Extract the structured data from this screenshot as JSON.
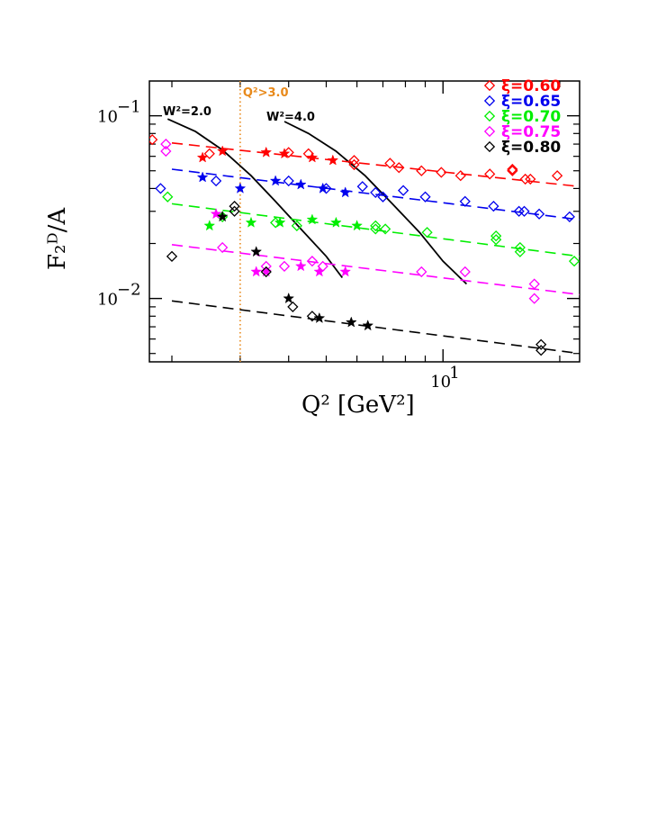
{
  "chart_data": {
    "type": "scatter",
    "title": "",
    "xlabel": "Q² [GeV²]",
    "ylabel": "F₂ᴰ/A",
    "xscale": "log",
    "yscale": "log",
    "xlim": [
      1.75,
      22.5
    ],
    "ylim": [
      0.0045,
      0.155
    ],
    "x_ticks": [
      {
        "value": 10,
        "label": "10",
        "exp": "1"
      }
    ],
    "y_ticks": [
      {
        "value": 0.1,
        "label": "10",
        "exp": "−1"
      },
      {
        "value": 0.01,
        "label": "10",
        "exp": "−2"
      }
    ],
    "legend_position": "top-right",
    "cut_line": {
      "x": 3.0,
      "label": "Q²>3.0",
      "color": "#e8891a"
    },
    "w2_curves": [
      {
        "label": "W²=2.0",
        "points": [
          [
            1.95,
            0.096
          ],
          [
            2.3,
            0.082
          ],
          [
            2.7,
            0.065
          ],
          [
            3.2,
            0.047
          ],
          [
            3.7,
            0.034
          ],
          [
            4.3,
            0.024
          ],
          [
            5.0,
            0.017
          ],
          [
            5.5,
            0.013
          ]
        ]
      },
      {
        "label": "W²=4.0",
        "points": [
          [
            3.9,
            0.093
          ],
          [
            4.5,
            0.08
          ],
          [
            5.3,
            0.064
          ],
          [
            6.3,
            0.047
          ],
          [
            7.4,
            0.033
          ],
          [
            8.7,
            0.023
          ],
          [
            10.0,
            0.016
          ],
          [
            11.5,
            0.012
          ]
        ]
      }
    ],
    "series": [
      {
        "name": "ξ=0.60",
        "color": "#ff0000",
        "fit": [
          [
            2.0,
            0.071
          ],
          [
            22.5,
            0.041
          ]
        ],
        "diamonds": [
          [
            1.78,
            0.074
          ],
          [
            2.5,
            0.062
          ],
          [
            4.0,
            0.063
          ],
          [
            4.5,
            0.062
          ],
          [
            5.9,
            0.057
          ],
          [
            5.9,
            0.054
          ],
          [
            7.3,
            0.055
          ],
          [
            7.7,
            0.052
          ],
          [
            8.8,
            0.05
          ],
          [
            9.9,
            0.049
          ],
          [
            11.1,
            0.047
          ],
          [
            13.2,
            0.048
          ],
          [
            15.1,
            0.051
          ],
          [
            15.1,
            0.05
          ],
          [
            16.3,
            0.045
          ],
          [
            16.8,
            0.045
          ],
          [
            19.7,
            0.047
          ]
        ],
        "stars": [
          [
            2.4,
            0.059
          ],
          [
            2.7,
            0.064
          ],
          [
            3.5,
            0.063
          ],
          [
            3.9,
            0.062
          ],
          [
            4.6,
            0.059
          ],
          [
            5.2,
            0.057
          ]
        ]
      },
      {
        "name": "ξ=0.65",
        "color": "#0000ee",
        "fit": [
          [
            2.0,
            0.051
          ],
          [
            22.5,
            0.027
          ]
        ],
        "diamonds": [
          [
            1.87,
            0.04
          ],
          [
            2.6,
            0.044
          ],
          [
            4.0,
            0.044
          ],
          [
            5.0,
            0.04
          ],
          [
            6.2,
            0.041
          ],
          [
            6.7,
            0.038
          ],
          [
            7.0,
            0.036
          ],
          [
            7.9,
            0.039
          ],
          [
            9.0,
            0.036
          ],
          [
            11.4,
            0.034
          ],
          [
            13.5,
            0.032
          ],
          [
            15.7,
            0.03
          ],
          [
            16.2,
            0.03
          ],
          [
            17.7,
            0.029
          ],
          [
            21.2,
            0.028
          ]
        ],
        "stars": [
          [
            2.4,
            0.046
          ],
          [
            3.0,
            0.04
          ],
          [
            3.7,
            0.044
          ],
          [
            4.3,
            0.042
          ],
          [
            4.9,
            0.04
          ],
          [
            5.6,
            0.038
          ]
        ]
      },
      {
        "name": "ξ=0.70",
        "color": "#00ee00",
        "fit": [
          [
            2.0,
            0.033
          ],
          [
            22.5,
            0.017
          ]
        ],
        "diamonds": [
          [
            1.95,
            0.036
          ],
          [
            2.7,
            0.028
          ],
          [
            3.7,
            0.026
          ],
          [
            4.2,
            0.025
          ],
          [
            6.7,
            0.025
          ],
          [
            6.7,
            0.024
          ],
          [
            7.1,
            0.024
          ],
          [
            9.1,
            0.023
          ],
          [
            13.7,
            0.022
          ],
          [
            13.7,
            0.021
          ],
          [
            15.8,
            0.019
          ],
          [
            15.8,
            0.018
          ],
          [
            21.8,
            0.016
          ]
        ],
        "stars": [
          [
            2.5,
            0.025
          ],
          [
            3.2,
            0.026
          ],
          [
            3.8,
            0.026
          ],
          [
            4.6,
            0.027
          ],
          [
            5.3,
            0.026
          ],
          [
            6.0,
            0.025
          ]
        ]
      },
      {
        "name": "ξ=0.75",
        "color": "#ff00ff",
        "fit": [
          [
            2.0,
            0.0197
          ],
          [
            22.5,
            0.0105
          ]
        ],
        "diamonds": [
          [
            1.93,
            0.07
          ],
          [
            1.93,
            0.064
          ],
          [
            2.7,
            0.019
          ],
          [
            3.5,
            0.015
          ],
          [
            3.9,
            0.015
          ],
          [
            4.6,
            0.016
          ],
          [
            4.9,
            0.015
          ],
          [
            8.8,
            0.014
          ],
          [
            11.4,
            0.014
          ],
          [
            17.2,
            0.012
          ],
          [
            17.2,
            0.01
          ]
        ],
        "stars": [
          [
            2.6,
            0.029
          ],
          [
            3.3,
            0.014
          ],
          [
            3.5,
            0.014
          ],
          [
            4.3,
            0.015
          ],
          [
            4.8,
            0.014
          ],
          [
            5.6,
            0.014
          ]
        ]
      },
      {
        "name": "ξ=0.80",
        "color": "#000000",
        "fit": [
          [
            2.0,
            0.0097
          ],
          [
            22.5,
            0.005
          ]
        ],
        "diamonds": [
          [
            2.0,
            0.017
          ],
          [
            2.9,
            0.032
          ],
          [
            2.9,
            0.03
          ],
          [
            3.5,
            0.014
          ],
          [
            4.1,
            0.009
          ],
          [
            4.6,
            0.008
          ],
          [
            17.9,
            0.0056
          ],
          [
            17.9,
            0.0052
          ]
        ],
        "stars": [
          [
            2.7,
            0.028
          ],
          [
            3.3,
            0.018
          ],
          [
            4.0,
            0.01
          ],
          [
            4.8,
            0.0078
          ],
          [
            5.8,
            0.0074
          ],
          [
            6.4,
            0.0071
          ]
        ]
      }
    ]
  }
}
